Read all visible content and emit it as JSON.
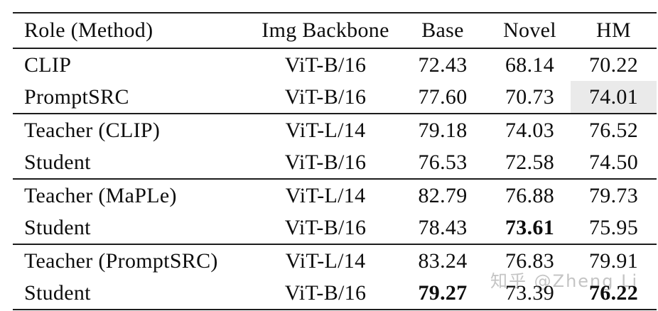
{
  "table": {
    "columns": [
      "Role (Method)",
      "Img Backbone",
      "Base",
      "Novel",
      "HM"
    ],
    "sections": [
      {
        "rows": [
          {
            "role": "CLIP",
            "backbone": "ViT-B/16",
            "base": "72.43",
            "novel": "68.14",
            "hm": "70.22",
            "bold": [],
            "highlight": []
          },
          {
            "role": "PromptSRC",
            "backbone": "ViT-B/16",
            "base": "77.60",
            "novel": "70.73",
            "hm": "74.01",
            "bold": [],
            "highlight": [
              "hm"
            ]
          }
        ]
      },
      {
        "rows": [
          {
            "role": "Teacher (CLIP)",
            "backbone": "ViT-L/14",
            "base": "79.18",
            "novel": "74.03",
            "hm": "76.52",
            "bold": [],
            "highlight": []
          },
          {
            "role": "Student",
            "backbone": "ViT-B/16",
            "base": "76.53",
            "novel": "72.58",
            "hm": "74.50",
            "bold": [],
            "highlight": []
          }
        ]
      },
      {
        "rows": [
          {
            "role": "Teacher (MaPLe)",
            "backbone": "ViT-L/14",
            "base": "82.79",
            "novel": "76.88",
            "hm": "79.73",
            "bold": [],
            "highlight": []
          },
          {
            "role": "Student",
            "backbone": "ViT-B/16",
            "base": "78.43",
            "novel": "73.61",
            "hm": "75.95",
            "bold": [
              "novel"
            ],
            "highlight": []
          }
        ]
      },
      {
        "rows": [
          {
            "role": "Teacher (PromptSRC)",
            "backbone": "ViT-L/14",
            "base": "83.24",
            "novel": "76.83",
            "hm": "79.91",
            "bold": [],
            "highlight": []
          },
          {
            "role": "Student",
            "backbone": "ViT-B/16",
            "base": "79.27",
            "novel": "73.39",
            "hm": "76.22",
            "bold": [
              "base",
              "hm"
            ],
            "highlight": []
          }
        ]
      }
    ]
  },
  "watermark": {
    "text": "知乎 @Zheng Li"
  },
  "colors": {
    "background": "#ffffff",
    "text": "#0d0d0d",
    "rule": "#1c1c1c",
    "highlight_cell": "#eaeaea",
    "watermark": "#c4c4c4"
  }
}
